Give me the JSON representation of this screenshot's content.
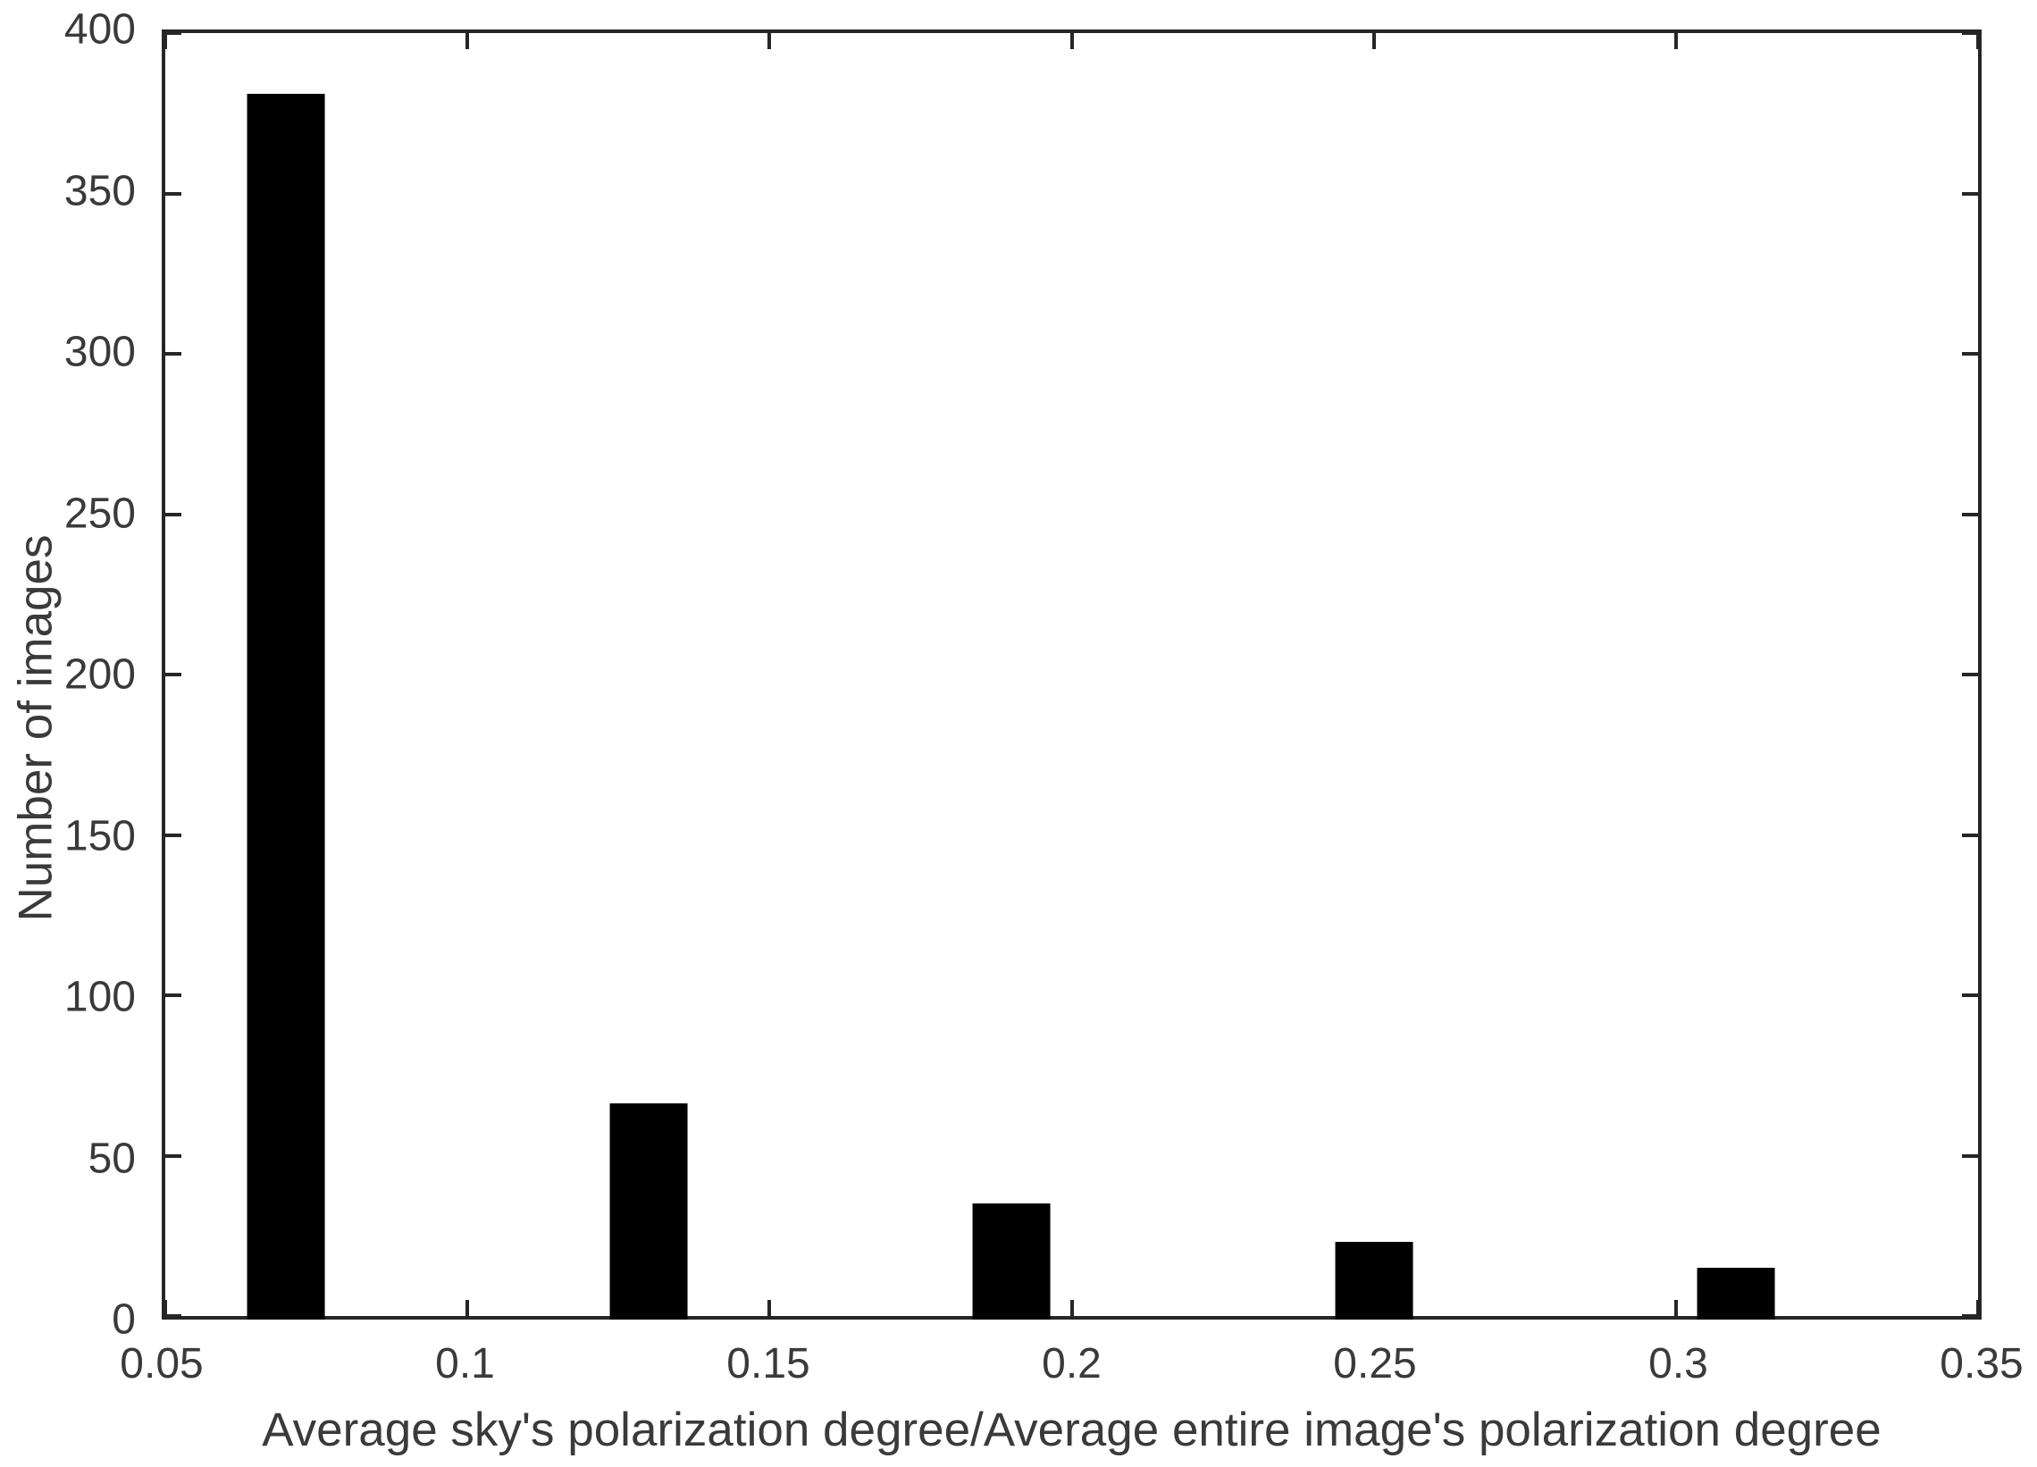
{
  "chart_data": {
    "type": "bar",
    "title": "",
    "xlabel": "Average sky's polarization degree/Average entire image's polarization degree",
    "ylabel": "Number of images",
    "categories": [
      0.07,
      0.13,
      0.19,
      0.25,
      0.31
    ],
    "values": [
      379,
      66,
      35,
      23,
      15
    ],
    "bar_width_data_units": 0.0128,
    "xlim": [
      0.05,
      0.35
    ],
    "ylim": [
      0,
      400
    ],
    "xticks": [
      0.05,
      0.1,
      0.15,
      0.2,
      0.25,
      0.3,
      0.35
    ],
    "xtick_labels": [
      "0.05",
      "0.1",
      "0.15",
      "0.2",
      "0.25",
      "0.3",
      "0.35"
    ],
    "yticks": [
      0,
      50,
      100,
      150,
      200,
      250,
      300,
      350,
      400
    ],
    "ytick_labels": [
      "0",
      "50",
      "100",
      "150",
      "200",
      "250",
      "300",
      "350",
      "400"
    ],
    "legend": null,
    "grid": false,
    "tick_direction": "in",
    "box": true,
    "bar_color": "#000000",
    "axis_color": "#262626",
    "text_color": "#3a3a3a",
    "background_color": "#ffffff"
  }
}
